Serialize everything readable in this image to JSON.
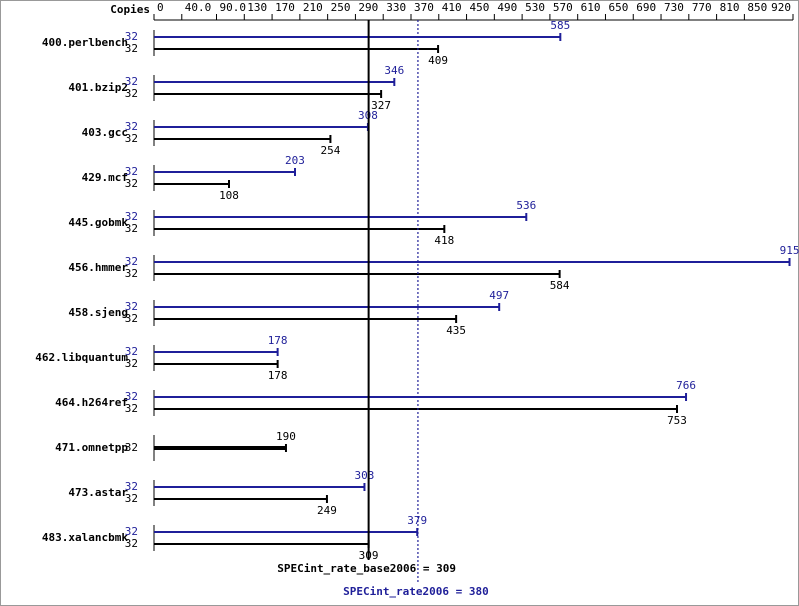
{
  "chart_data": {
    "type": "bar",
    "orientation": "horizontal",
    "header": "Copies",
    "categories": [
      "400.perlbench",
      "401.bzip2",
      "403.gcc",
      "429.mcf",
      "445.gobmk",
      "456.hmmer",
      "458.sjeng",
      "462.libquantum",
      "464.h264ref",
      "471.omnetpp",
      "473.astar",
      "483.xalancbmk"
    ],
    "series": [
      {
        "color": "#1f1f99",
        "values": [
          585,
          346,
          308,
          203,
          536,
          915,
          497,
          178,
          766,
          null,
          303,
          379
        ],
        "copies": [
          32,
          32,
          32,
          32,
          32,
          32,
          32,
          32,
          32,
          null,
          32,
          32
        ]
      },
      {
        "color": "#000000",
        "values": [
          409,
          327,
          254,
          108,
          418,
          584,
          435,
          178,
          753,
          190,
          249,
          309
        ],
        "copies": [
          32,
          32,
          32,
          32,
          32,
          32,
          32,
          32,
          32,
          32,
          32,
          32
        ]
      }
    ],
    "xlim": [
      0,
      920
    ],
    "xticks": [
      0,
      {
        "value": 40,
        "label": "40.0"
      },
      {
        "value": 90,
        "label": "90.0"
      },
      130,
      170,
      210,
      250,
      290,
      330,
      370,
      410,
      450,
      490,
      530,
      570,
      610,
      650,
      690,
      730,
      770,
      810,
      850,
      920
    ],
    "summary": [
      {
        "label": "SPECint_rate_base2006 = 309",
        "value": 309,
        "color": "#000000",
        "line_style": "solid"
      },
      {
        "label": "SPECint_rate2006 = 380",
        "value": 380,
        "color": "#1f1f99",
        "line_style": "dotted"
      }
    ]
  }
}
